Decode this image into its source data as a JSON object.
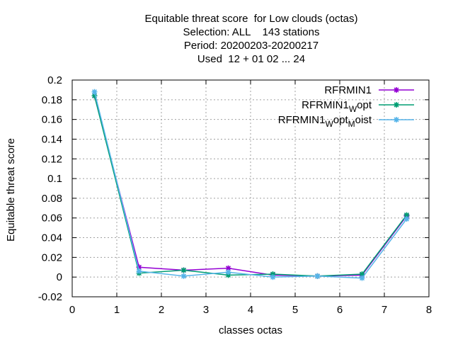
{
  "chart_data": {
    "type": "line",
    "title_lines": [
      "Equitable threat score  for Low clouds (octas)",
      "Selection: ALL    143 stations",
      "Period: 20200203-20200217",
      "Used  12 + 01 02 ... 24"
    ],
    "xlabel": "classes octas",
    "ylabel": "Equitable threat score",
    "xlim": [
      0,
      8
    ],
    "ylim": [
      -0.02,
      0.2
    ],
    "xticks": [
      0,
      1,
      2,
      3,
      4,
      5,
      6,
      7,
      8
    ],
    "yticks": [
      -0.02,
      0,
      0.02,
      0.04,
      0.06,
      0.08,
      0.1,
      0.12,
      0.14,
      0.16,
      0.18,
      0.2
    ],
    "ytick_labels": [
      "-0.02",
      "0",
      "0.02",
      "0.04",
      "0.06",
      "0.08",
      "0.1",
      "0.12",
      "0.14",
      "0.16",
      "0.18",
      "0.2"
    ],
    "grid": true,
    "legend_position": "top-right",
    "x": [
      0.5,
      1.5,
      2.5,
      3.5,
      4.5,
      5.5,
      6.5,
      7.5
    ],
    "series": [
      {
        "name": "RFRMIN1",
        "name_parts": [
          [
            "RFRMIN1",
            false
          ]
        ],
        "color": "#9400d3",
        "values": [
          0.184,
          0.01,
          0.007,
          0.009,
          0.002,
          0.001,
          0.002,
          0.062
        ]
      },
      {
        "name": "RFRMIN1_Wopt",
        "name_parts": [
          [
            "RFRMIN1",
            false
          ],
          [
            "W",
            true
          ],
          [
            "opt",
            false
          ]
        ],
        "color": "#009e73",
        "values": [
          0.184,
          0.004,
          0.007,
          0.002,
          0.003,
          0.001,
          0.003,
          0.063
        ]
      },
      {
        "name": "RFRMIN1_Wopt_Moist",
        "name_parts": [
          [
            "RFRMIN1",
            false
          ],
          [
            "W",
            true
          ],
          [
            "opt",
            false
          ],
          [
            "M",
            true
          ],
          [
            "oist",
            false
          ]
        ],
        "color": "#56b4e9",
        "values": [
          0.188,
          0.006,
          0.001,
          0.005,
          0.0,
          0.001,
          -0.001,
          0.059
        ]
      }
    ]
  }
}
